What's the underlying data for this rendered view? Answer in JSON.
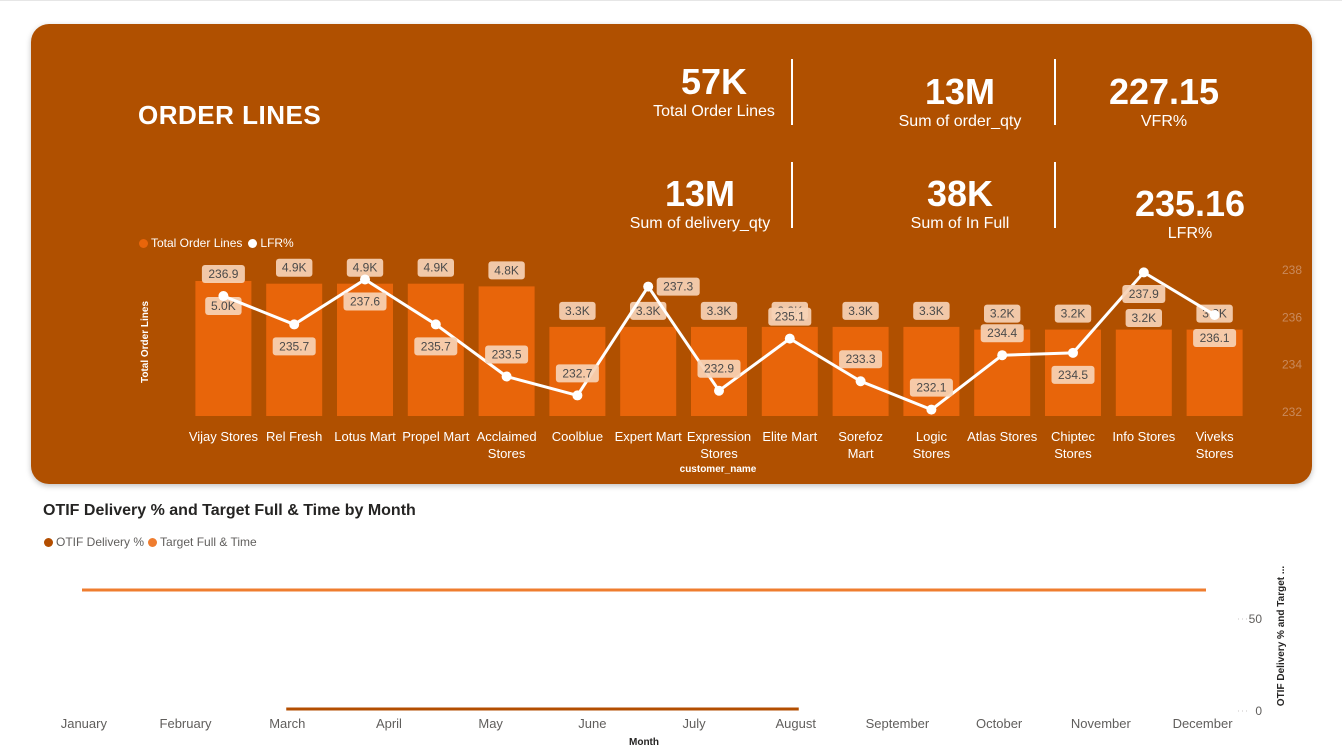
{
  "panel": {
    "title": "ORDER LINES"
  },
  "kpis": [
    {
      "value": "57K",
      "label": "Total Order Lines"
    },
    {
      "value": "13M",
      "label": "Sum of order_qty"
    },
    {
      "value": "227.15",
      "label": "VFR%"
    },
    {
      "value": "13M",
      "label": "Sum of delivery_qty"
    },
    {
      "value": "38K",
      "label": "Sum of In Full"
    },
    {
      "value": "235.16",
      "label": "LFR%"
    }
  ],
  "colors": {
    "panel_bg": "#b05000",
    "bar": "#e8650a",
    "line": "#ffffff",
    "otif": "#b34e00",
    "target": "#ef7d2f"
  },
  "chart_data": [
    {
      "type": "bar+line",
      "title": "",
      "legend": [
        "Total Order Lines",
        "LFR%"
      ],
      "xlabel": "customer_name",
      "ylabel": "Total Order Lines",
      "y2_ticks": [
        "232",
        "234",
        "236",
        "238"
      ],
      "y2lim": [
        232,
        238
      ],
      "categories": [
        "Vijay Stores",
        "Rel Fresh",
        "Lotus Mart",
        "Propel Mart",
        "Acclaimed Stores",
        "Coolblue",
        "Expert Mart",
        "Expression Stores",
        "Elite Mart",
        "Sorefoz Mart",
        "Logic Stores",
        "Atlas Stores",
        "Chiptec Stores",
        "Info Stores",
        "Viveks Stores"
      ],
      "series": [
        {
          "name": "Total Order Lines",
          "type": "bar",
          "values": [
            5000,
            4900,
            4900,
            4900,
            4800,
            3300,
            3300,
            3300,
            3300,
            3300,
            3300,
            3200,
            3200,
            3200,
            3200
          ],
          "labels": [
            "5.0K",
            "4.9K",
            "4.9K",
            "4.9K",
            "4.8K",
            "3.3K",
            "3.3K",
            "3.3K",
            "3.3K",
            "3.3K",
            "3.3K",
            "3.2K",
            "3.2K",
            "3.2K",
            "3.2K"
          ]
        },
        {
          "name": "LFR%",
          "type": "line",
          "values": [
            236.9,
            235.7,
            237.6,
            235.7,
            233.5,
            232.7,
            237.3,
            232.9,
            235.1,
            233.3,
            232.1,
            234.4,
            234.5,
            237.9,
            236.1
          ],
          "labels": [
            "236.9",
            "235.7",
            "237.6",
            "235.7",
            "233.5",
            "232.7",
            "237.3",
            "232.9",
            "235.1",
            "233.3",
            "232.1",
            "234.4",
            "234.5",
            "237.9",
            "236.1"
          ]
        }
      ]
    },
    {
      "type": "line",
      "title": "OTIF Delivery % and Target Full & Time by Month",
      "legend": [
        "OTIF Delivery %",
        "Target Full & Time"
      ],
      "xlabel": "Month",
      "ylabel": "OTIF Delivery % and Target ...",
      "y_ticks": [
        "0",
        "50"
      ],
      "ylim": [
        0,
        72
      ],
      "categories": [
        "January",
        "February",
        "March",
        "April",
        "May",
        "June",
        "July",
        "August",
        "September",
        "October",
        "November",
        "December"
      ],
      "series": [
        {
          "name": "OTIF Delivery %",
          "values": [
            null,
            null,
            0,
            0,
            0,
            0,
            0,
            0,
            null,
            null,
            null,
            null
          ]
        },
        {
          "name": "Target Full & Time",
          "values": [
            65,
            65,
            65,
            65,
            65,
            65,
            65,
            65,
            65,
            65,
            65,
            65
          ]
        }
      ]
    }
  ]
}
